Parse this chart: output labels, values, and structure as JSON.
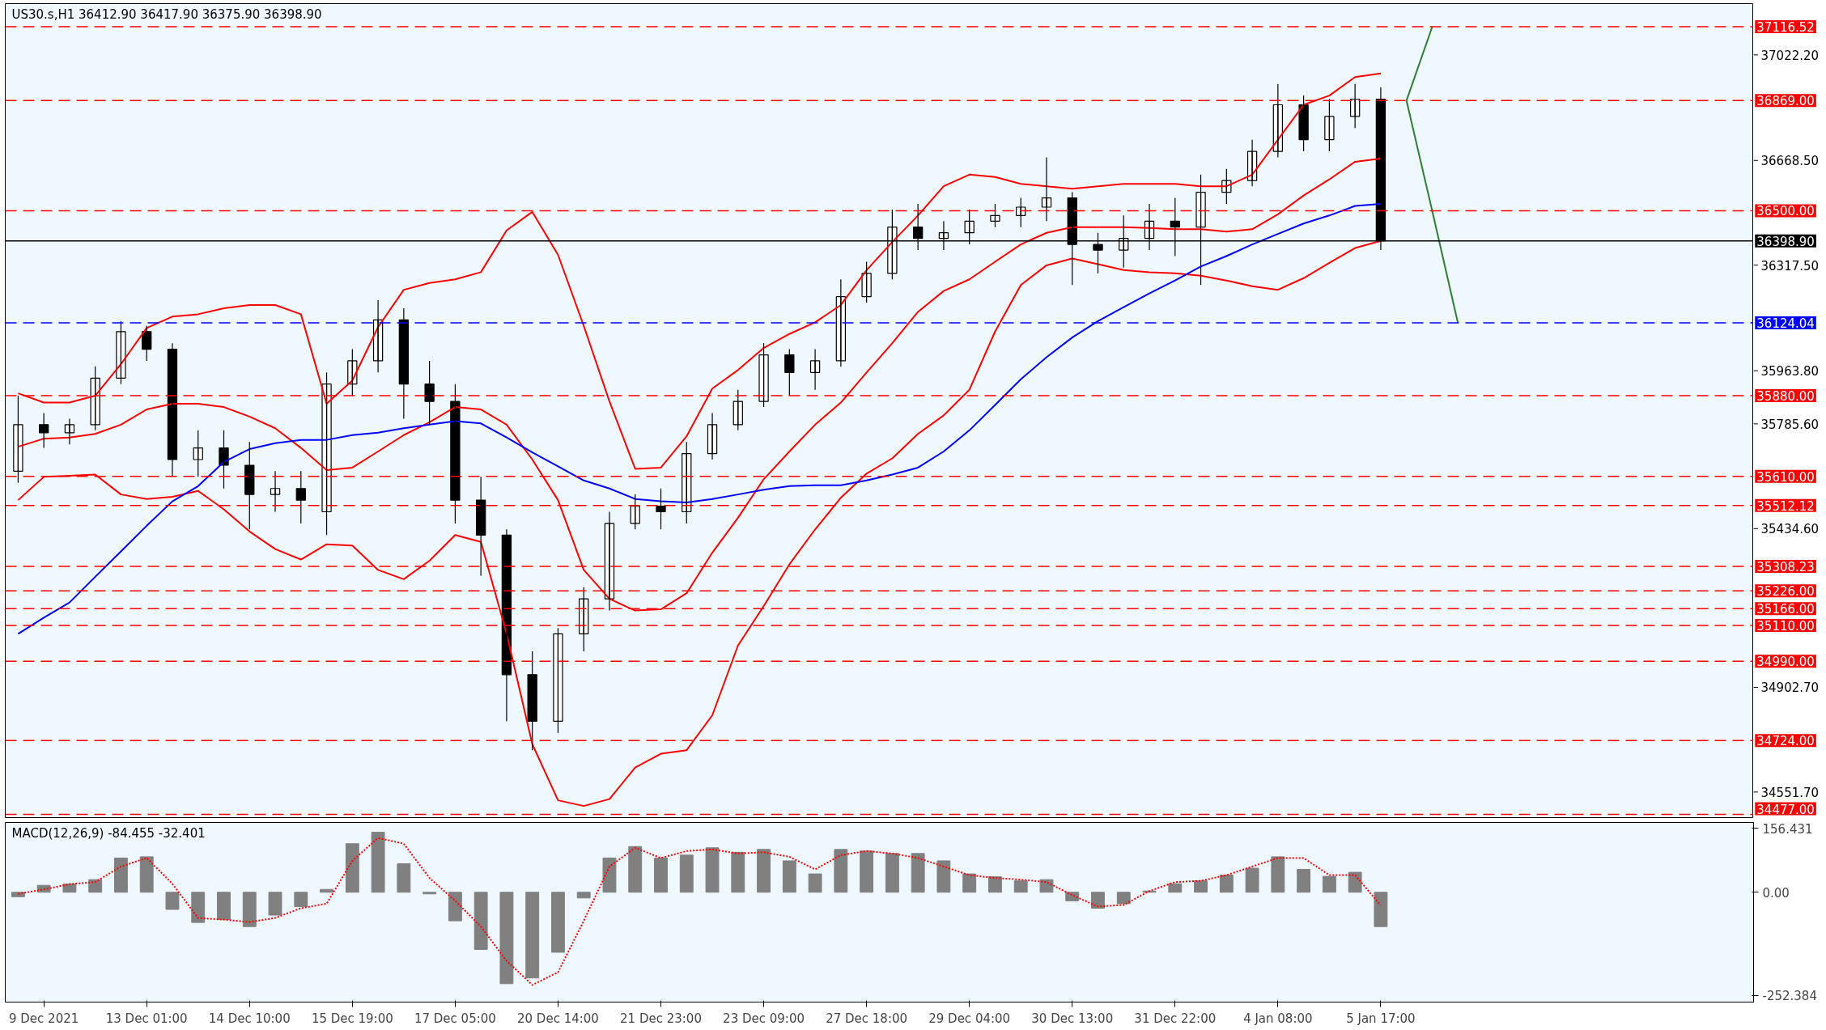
{
  "chart_data": [
    {
      "type": "candlestick",
      "title": "US30.s,H1  36412.90 36417.90 36375.90 36398.90",
      "categories": [
        null,
        null,
        null,
        null,
        null,
        null,
        null,
        null,
        null,
        null,
        null,
        null,
        null,
        null,
        null,
        null,
        null,
        null,
        null,
        null,
        null,
        null,
        null,
        null,
        null,
        null,
        null,
        null,
        null,
        null,
        null,
        null,
        null,
        null,
        null,
        null,
        null,
        null,
        null,
        null,
        null,
        null,
        null,
        null,
        null,
        null,
        null,
        null,
        null,
        null,
        null,
        null,
        null,
        null,
        null,
        null,
        null,
        null,
        null,
        null,
        null,
        null,
        null,
        null,
        null,
        null,
        null,
        null
      ],
      "ohlc": [
        [
          35627,
          35880,
          35588,
          35783
        ],
        [
          35783,
          35822,
          35705,
          35756
        ],
        [
          35756,
          35803,
          35717,
          35783
        ],
        [
          35783,
          35978,
          35764,
          35939
        ],
        [
          35939,
          36130,
          35919,
          36095
        ],
        [
          36095,
          36114,
          35997,
          36036
        ],
        [
          36036,
          36056,
          35608,
          35666
        ],
        [
          35666,
          35764,
          35608,
          35705
        ],
        [
          35705,
          35764,
          35569,
          35647
        ],
        [
          35647,
          35725,
          35432,
          35549
        ],
        [
          35549,
          35627,
          35491,
          35569
        ],
        [
          35569,
          35627,
          35452,
          35530
        ],
        [
          35491,
          35958,
          35413,
          35919
        ],
        [
          35919,
          36036,
          35880,
          35997
        ],
        [
          35997,
          36200,
          35958,
          36134
        ],
        [
          36134,
          36173,
          35803,
          35919
        ],
        [
          35919,
          35997,
          35783,
          35861
        ],
        [
          35861,
          35919,
          35452,
          35530
        ],
        [
          35530,
          35608,
          35277,
          35413
        ],
        [
          35413,
          35432,
          34789,
          34945
        ],
        [
          34945,
          35023,
          34692,
          34789
        ],
        [
          34789,
          35101,
          34750,
          35082
        ],
        [
          35082,
          35238,
          35023,
          35199
        ],
        [
          35199,
          35491,
          35160,
          35452
        ],
        [
          35452,
          35549,
          35432,
          35510
        ],
        [
          35510,
          35569,
          35432,
          35491
        ],
        [
          35491,
          35725,
          35452,
          35686
        ],
        [
          35686,
          35822,
          35666,
          35783
        ],
        [
          35783,
          35900,
          35764,
          35861
        ],
        [
          35861,
          36056,
          35842,
          36017
        ],
        [
          36017,
          36036,
          35880,
          35958
        ],
        [
          35958,
          36036,
          35900,
          35997
        ],
        [
          35997,
          36270,
          35978,
          36212
        ],
        [
          36212,
          36329,
          36192,
          36290
        ],
        [
          36290,
          36504,
          36270,
          36445
        ],
        [
          36445,
          36523,
          36368,
          36407
        ],
        [
          36407,
          36465,
          36368,
          36426
        ],
        [
          36426,
          36504,
          36387,
          36465
        ],
        [
          36465,
          36523,
          36445,
          36484
        ],
        [
          36484,
          36543,
          36445,
          36512
        ],
        [
          36512,
          36679,
          36465,
          36543
        ],
        [
          36543,
          36562,
          36251,
          36387
        ],
        [
          36387,
          36426,
          36290,
          36368
        ],
        [
          36368,
          36484,
          36309,
          36407
        ],
        [
          36407,
          36523,
          36368,
          36465
        ],
        [
          36465,
          36543,
          36348,
          36445
        ],
        [
          36445,
          36621,
          36251,
          36562
        ],
        [
          36562,
          36640,
          36523,
          36601
        ],
        [
          36601,
          36738,
          36582,
          36699
        ],
        [
          36699,
          36925,
          36679,
          36855
        ],
        [
          36855,
          36886,
          36699,
          36738
        ],
        [
          36738,
          36874,
          36699,
          36816
        ],
        [
          36816,
          36925,
          36777,
          36874
        ],
        [
          36874,
          36913,
          36368,
          36398.9
        ],
        null,
        null,
        null,
        null,
        null,
        null,
        null,
        null,
        null,
        null,
        null,
        null,
        null,
        null
      ],
      "series": [
        {
          "type": "line",
          "color": "#ff0000",
          "values": [
            35888,
            35857,
            35857,
            35880,
            35986,
            36107,
            36145,
            36153,
            36173,
            36184,
            36184,
            36153,
            35853,
            35931,
            36110,
            36235,
            36258,
            36270,
            36294,
            36434,
            36496,
            36352,
            36114,
            35861,
            35635,
            35639,
            35744,
            35904,
            35966,
            36040,
            36087,
            36126,
            36184,
            36301,
            36395,
            36484,
            36582,
            36621,
            36613,
            36590,
            36582,
            36574,
            36582,
            36590,
            36590,
            36590,
            36582,
            36582,
            36621,
            36738,
            36855,
            36886,
            36948,
            36960,
            null,
            null,
            null,
            null,
            null,
            null,
            null,
            null,
            null,
            null,
            null,
            null,
            null,
            null
          ]
        },
        {
          "type": "line",
          "color": "#ff0000",
          "values": [
            35709,
            35736,
            35740,
            35752,
            35783,
            35834,
            35853,
            35853,
            35842,
            35810,
            35771,
            35705,
            35631,
            35639,
            35693,
            35748,
            35791,
            35842,
            35834,
            35783,
            35666,
            35530,
            35296,
            35199,
            35160,
            35164,
            35218,
            35354,
            35471,
            35600,
            35693,
            35783,
            35857,
            35958,
            36056,
            36161,
            36231,
            36270,
            36329,
            36387,
            36426,
            36445,
            36445,
            36445,
            36442,
            36438,
            36438,
            36430,
            36438,
            36488,
            36551,
            36605,
            36664,
            36675,
            null,
            null,
            null,
            null,
            null,
            null,
            null,
            null,
            null,
            null,
            null,
            null,
            null,
            null
          ]
        },
        {
          "type": "line",
          "color": "#ff0000",
          "values": [
            35530,
            35608,
            35612,
            35616,
            35549,
            35534,
            35541,
            35561,
            35499,
            35425,
            35366,
            35331,
            35382,
            35378,
            35296,
            35265,
            35327,
            35413,
            35390,
            35082,
            34712,
            34524,
            34505,
            34528,
            34634,
            34680,
            34692,
            34809,
            35043,
            35175,
            35315,
            35432,
            35538,
            35619,
            35670,
            35752,
            35814,
            35900,
            36095,
            36251,
            36317,
            36340,
            36321,
            36301,
            36294,
            36290,
            36282,
            36266,
            36247,
            36235,
            36274,
            36325,
            36375,
            36399,
            null,
            null,
            null,
            null,
            null,
            null,
            null,
            null,
            null,
            null,
            null,
            null,
            null,
            null
          ]
        },
        {
          "type": "line",
          "color": "#0000ff",
          "values": [
            35082,
            35136,
            35187,
            35273,
            35358,
            35444,
            35526,
            35577,
            35658,
            35701,
            35721,
            35732,
            35732,
            35748,
            35756,
            35771,
            35783,
            35795,
            35787,
            35740,
            35690,
            35643,
            35596,
            35569,
            35534,
            35526,
            35522,
            35534,
            35549,
            35565,
            35577,
            35580,
            35580,
            35596,
            35616,
            35639,
            35693,
            35764,
            35849,
            35935,
            36009,
            36075,
            36130,
            36177,
            36223,
            36266,
            36313,
            36348,
            36387,
            36422,
            36457,
            36484,
            36516,
            36523,
            null,
            null,
            null,
            null,
            null,
            null,
            null,
            null,
            null,
            null,
            null,
            null,
            null,
            null
          ]
        },
        {
          "type": "line",
          "color": "#2e7d32",
          "values": [
            null,
            null,
            null,
            null,
            null,
            null,
            null,
            null,
            null,
            null,
            null,
            null,
            null,
            null,
            null,
            null,
            null,
            null,
            null,
            null,
            null,
            null,
            null,
            null,
            null,
            null,
            null,
            null,
            null,
            null,
            null,
            null,
            null,
            null,
            null,
            null,
            null,
            null,
            null,
            null,
            null,
            null,
            null,
            null,
            null,
            null,
            null,
            null,
            null,
            null,
            null,
            null,
            null,
            null,
            36869,
            37116,
            null,
            null,
            null,
            null,
            null,
            null,
            null,
            null,
            null,
            null,
            null,
            null
          ]
        },
        {
          "type": "line",
          "color": "#2e7d32",
          "values": [
            null,
            null,
            null,
            null,
            null,
            null,
            null,
            null,
            null,
            null,
            null,
            null,
            null,
            null,
            null,
            null,
            null,
            null,
            null,
            null,
            null,
            null,
            null,
            null,
            null,
            null,
            null,
            null,
            null,
            null,
            null,
            null,
            null,
            null,
            null,
            null,
            null,
            null,
            null,
            null,
            null,
            null,
            null,
            null,
            null,
            null,
            null,
            null,
            null,
            null,
            null,
            null,
            null,
            null,
            36869,
            36500,
            36124,
            null,
            null,
            null,
            null,
            null,
            null,
            null,
            null,
            null,
            null,
            null
          ]
        }
      ],
      "ylim": [
        34466,
        37194
      ],
      "yticks": [
        {
          "value": 37022.2,
          "label": "37022.20"
        },
        {
          "value": 36668.5,
          "label": "36668.50"
        },
        {
          "value": 36317.5,
          "label": "36317.50"
        },
        {
          "value": 35963.8,
          "label": "35963.80"
        },
        {
          "value": 35785.6,
          "label": "35785.60"
        },
        {
          "value": 35434.6,
          "label": "35434.60"
        },
        {
          "value": 34902.7,
          "label": "34902.70"
        },
        {
          "value": 34551.7,
          "label": "34551.70"
        }
      ],
      "ref_lines": [
        {
          "axis": "y",
          "value": 37116.52,
          "label": "37116.52",
          "color": "#ff0000",
          "line_style": "dashed"
        },
        {
          "axis": "y",
          "value": 36869,
          "label": "36869.00",
          "color": "#ff0000",
          "line_style": "dashed"
        },
        {
          "axis": "y",
          "value": 36500,
          "label": "36500.00",
          "color": "#ff0000",
          "line_style": "dashed"
        },
        {
          "axis": "y",
          "value": 36398.9,
          "label": "36398.90",
          "color": "#000000",
          "line_style": "solid"
        },
        {
          "axis": "y",
          "value": 36124.04,
          "label": "36124.04",
          "color": "#0000ff",
          "line_style": "dashed"
        },
        {
          "axis": "y",
          "value": 35880,
          "label": "35880.00",
          "color": "#ff0000",
          "line_style": "dashed"
        },
        {
          "axis": "y",
          "value": 35610,
          "label": "35610.00",
          "color": "#ff0000",
          "line_style": "dashed"
        },
        {
          "axis": "y",
          "value": 35512.12,
          "label": "35512.12",
          "color": "#ff0000",
          "line_style": "dashed"
        },
        {
          "axis": "y",
          "value": 35308.23,
          "label": "35308.23",
          "color": "#ff0000",
          "line_style": "dashed"
        },
        {
          "axis": "y",
          "value": 35226,
          "label": "35226.00",
          "color": "#ff0000",
          "line_style": "dashed"
        },
        {
          "axis": "y",
          "value": 35166,
          "label": "35166.00",
          "color": "#ff0000",
          "line_style": "dashed"
        },
        {
          "axis": "y",
          "value": 35110,
          "label": "35110.00",
          "color": "#ff0000",
          "line_style": "dashed"
        },
        {
          "axis": "y",
          "value": 34990,
          "label": "34990.00",
          "color": "#ff0000",
          "line_style": "dashed"
        },
        {
          "axis": "y",
          "value": 34724,
          "label": "34724.00",
          "color": "#ff0000",
          "line_style": "dashed"
        },
        {
          "axis": "y",
          "value": 34477,
          "label": "34477.00",
          "color": "#ff0000",
          "line_style": "dashed"
        }
      ],
      "tick_labels": "y"
    },
    {
      "type": "bar",
      "title": "MACD(12,26,9) -84.455 -32.401",
      "categories": [
        null,
        "9 Dec 2021",
        null,
        null,
        null,
        "13 Dec 01:00",
        null,
        null,
        null,
        "14 Dec 10:00",
        null,
        null,
        null,
        "15 Dec 19:00",
        null,
        null,
        null,
        "17 Dec 05:00",
        null,
        null,
        null,
        "20 Dec 14:00",
        null,
        null,
        null,
        "21 Dec 23:00",
        null,
        null,
        null,
        "23 Dec 09:00",
        null,
        null,
        null,
        "27 Dec 18:00",
        null,
        null,
        null,
        "29 Dec 04:00",
        null,
        null,
        null,
        "30 Dec 13:00",
        null,
        null,
        null,
        "31 Dec 22:00",
        null,
        null,
        null,
        "4 Jan 08:00",
        null,
        null,
        null,
        "5 Jan 17:00",
        null,
        null,
        null,
        null,
        null,
        null,
        null,
        null,
        null,
        null,
        null,
        null,
        null,
        null
      ],
      "series": [
        {
          "type": "bar",
          "color": "#808080",
          "values": [
            -11,
            17,
            20,
            31,
            84,
            87,
            -42,
            -74,
            -67,
            -84,
            -56,
            -35,
            7,
            119,
            147,
            70,
            -4,
            -70,
            -140,
            -224,
            -210,
            -147,
            -14,
            84,
            112,
            84,
            91,
            109,
            98,
            105,
            77,
            45,
            105,
            101,
            95,
            95,
            77,
            45,
            38,
            28,
            31,
            -21,
            -39,
            -28,
            3,
            21,
            28,
            42,
            59,
            87,
            56,
            39,
            49,
            -84,
            null,
            null,
            null,
            null,
            null,
            null,
            null,
            null,
            null,
            null,
            null,
            null,
            null,
            null
          ]
        },
        {
          "type": "line",
          "color": "#ff0000",
          "line_style": "dotted",
          "values": [
            -4,
            7,
            20,
            25,
            63,
            84,
            21,
            -63,
            -67,
            -73,
            -63,
            -39,
            -28,
            77,
            133,
            119,
            35,
            -21,
            -84,
            -168,
            -227,
            -196,
            -70,
            63,
            109,
            84,
            101,
            105,
            95,
            98,
            87,
            56,
            91,
            101,
            95,
            84,
            63,
            42,
            35,
            31,
            25,
            -7,
            -35,
            -31,
            3,
            25,
            28,
            42,
            63,
            84,
            84,
            42,
            42,
            -32,
            null,
            null,
            null,
            null,
            null,
            null,
            null,
            null,
            null,
            null,
            null,
            null,
            null,
            null
          ]
        }
      ],
      "ylim": [
        -269,
        171
      ],
      "yticks": [
        {
          "value": 156.431,
          "label": "156.431"
        },
        {
          "value": 0,
          "label": "0.00"
        },
        {
          "value": -252.384,
          "label": "-252.384"
        }
      ]
    }
  ]
}
